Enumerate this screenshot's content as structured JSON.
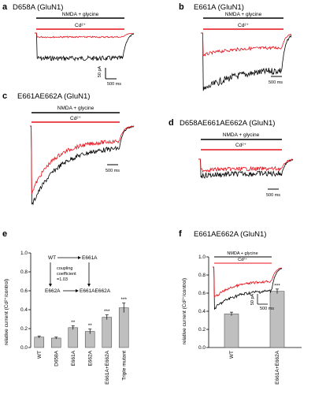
{
  "panels": {
    "a": {
      "letter": "a",
      "title": "D658A (GluN1)",
      "bar1": "NMDA + glycine",
      "bar2": "Cd²⁺",
      "scale_y": "50 pA",
      "scale_x": "500 ms"
    },
    "b": {
      "letter": "b",
      "title": "E661A (GluN1)",
      "bar1": "NMDA + glycine",
      "bar2": "Cd²⁺",
      "scale_x": "500 ms"
    },
    "c": {
      "letter": "c",
      "title": "E661AE662A (GluN1)",
      "bar1": "NMDA + glycine",
      "bar2": "Cd²⁺",
      "scale_x": "500 ms"
    },
    "d": {
      "letter": "d",
      "title": "D658AE661AE662A (GluN1)",
      "bar1": "NMDA + glycine",
      "bar2": "Cd²⁺",
      "scale_x": "500 ms"
    },
    "e": {
      "letter": "e",
      "ylabel": "relative current (Cd²⁺/control)",
      "scheme": {
        "wt": "WT",
        "e661a": "E661A",
        "e662a": "E662A",
        "double": "E661AE662A",
        "coupling1": "coupling",
        "coupling2": "coefficient",
        "coupling3": "=1.03"
      }
    },
    "f": {
      "letter": "f",
      "title": "E661AE662A (GluN1)",
      "ylabel": "relative current (Cd²⁺/control)",
      "inset_bar1": "NMDA + glycine",
      "inset_bar2": "Cd²⁺",
      "inset_scale_y": "50 pA",
      "inset_scale_x": "500 ms"
    }
  },
  "colors": {
    "control": "#000000",
    "cadmium": "#e8101a",
    "bar": "#bfbfbf"
  },
  "chart_data": [
    {
      "type": "bar",
      "panel": "e",
      "categories": [
        "WT",
        "D658A",
        "E661A",
        "E662A",
        "E661A+E662A",
        "Triple mutant"
      ],
      "values": [
        0.11,
        0.1,
        0.21,
        0.17,
        0.32,
        0.42
      ],
      "errors": [
        0.01,
        0.01,
        0.02,
        0.025,
        0.025,
        0.05
      ],
      "significance": [
        "",
        "",
        "**",
        "**",
        "***",
        "***"
      ],
      "ylabel": "relative current (Cd²⁺/control)",
      "ylim": [
        0,
        1.0
      ],
      "yticks": [
        "0.0",
        "0.2",
        "0.4",
        "0.6",
        "0.8",
        "1.0"
      ],
      "yticks_num": [
        0,
        0.2,
        0.4,
        0.6,
        0.8,
        1.0
      ]
    },
    {
      "type": "bar",
      "panel": "f",
      "categories": [
        "WT",
        "E661A+E662A"
      ],
      "values": [
        0.37,
        0.62
      ],
      "errors": [
        0.02,
        0.025
      ],
      "significance": [
        "",
        "***"
      ],
      "ylabel": "relative current (Cd²⁺/control)",
      "ylim": [
        0,
        1.0
      ],
      "yticks": [
        "0.0",
        "0.2",
        "0.4",
        "0.6",
        "0.8",
        "1.0"
      ],
      "yticks_num": [
        0,
        0.2,
        0.4,
        0.6,
        0.8,
        1.0
      ]
    }
  ]
}
